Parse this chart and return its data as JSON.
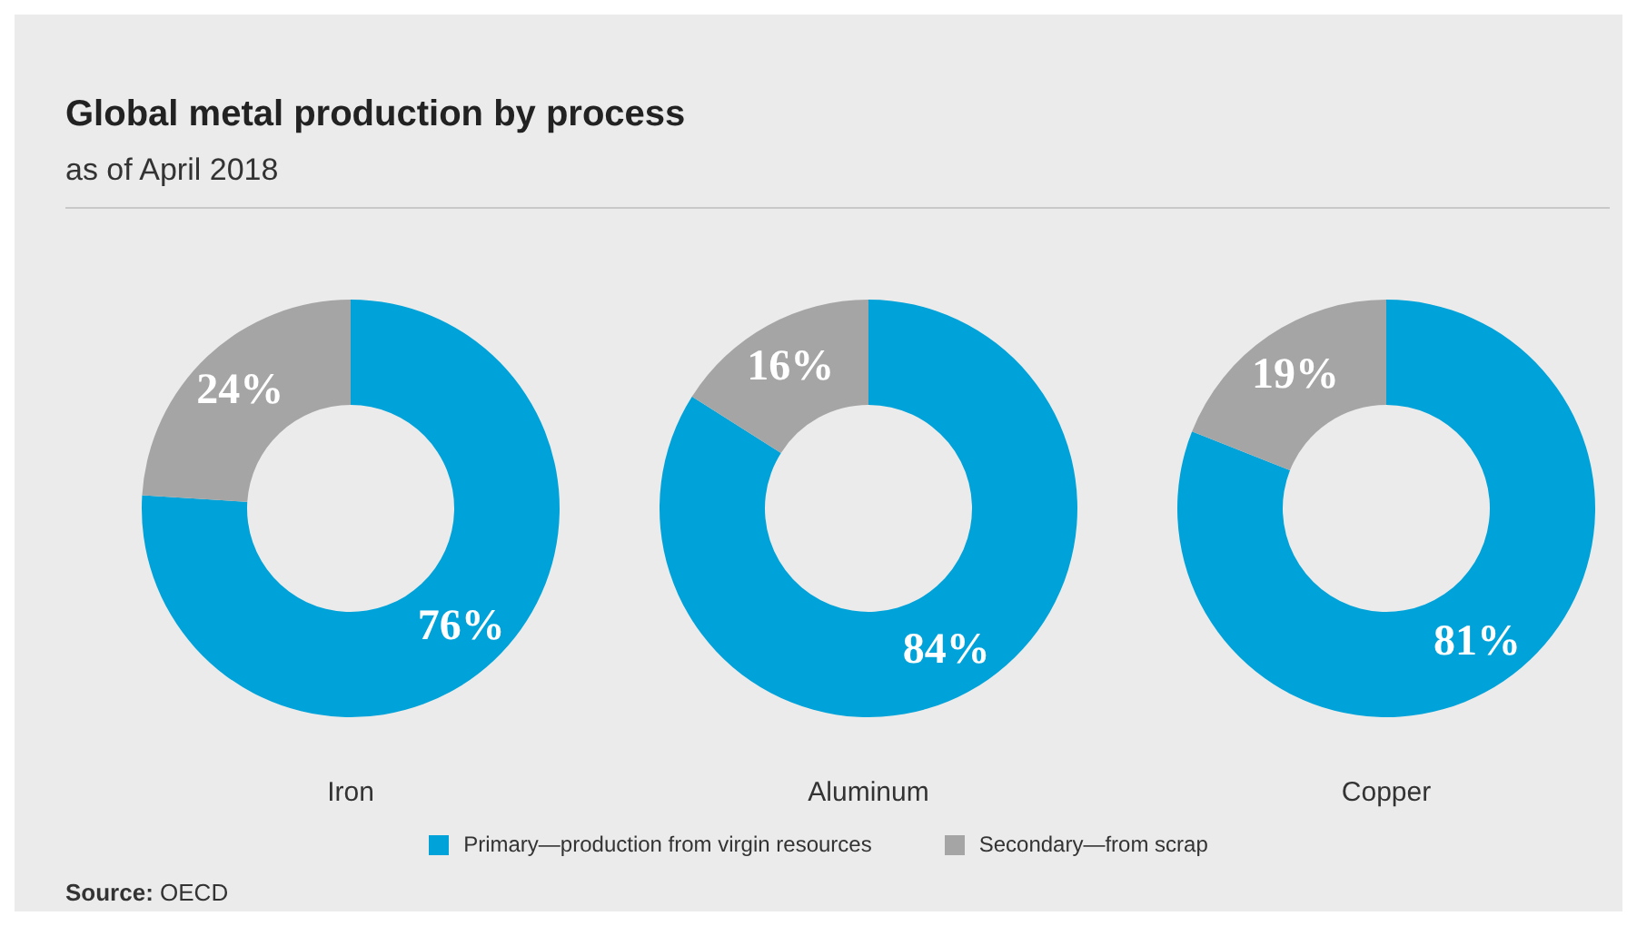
{
  "chart_data": [
    {
      "type": "donut",
      "title": "Global metal production by process",
      "subtitle": "as of April 2018",
      "xlabel": "Iron",
      "categories": [
        "Primary—production from virgin resources",
        "Secondary—from scrap"
      ],
      "values": [
        76,
        24
      ],
      "colors": [
        "#00a3d9",
        "#a5a5a5"
      ],
      "value_labels": [
        "76%",
        "24%"
      ],
      "legend": "bottom"
    },
    {
      "type": "donut",
      "xlabel": "Aluminum",
      "categories": [
        null,
        null
      ],
      "values": [
        84,
        16
      ],
      "colors": [
        "#00a3d9",
        "#a5a5a5"
      ],
      "value_labels": [
        "84%",
        "16%"
      ]
    },
    {
      "type": "donut",
      "xlabel": "Copper",
      "categories": [
        null,
        null
      ],
      "values": [
        81,
        19
      ],
      "colors": [
        "#00a3d9",
        "#a5a5a5"
      ],
      "value_labels": [
        "81%",
        "19%"
      ],
      "annotations": [
        "Source: OECD"
      ]
    }
  ]
}
